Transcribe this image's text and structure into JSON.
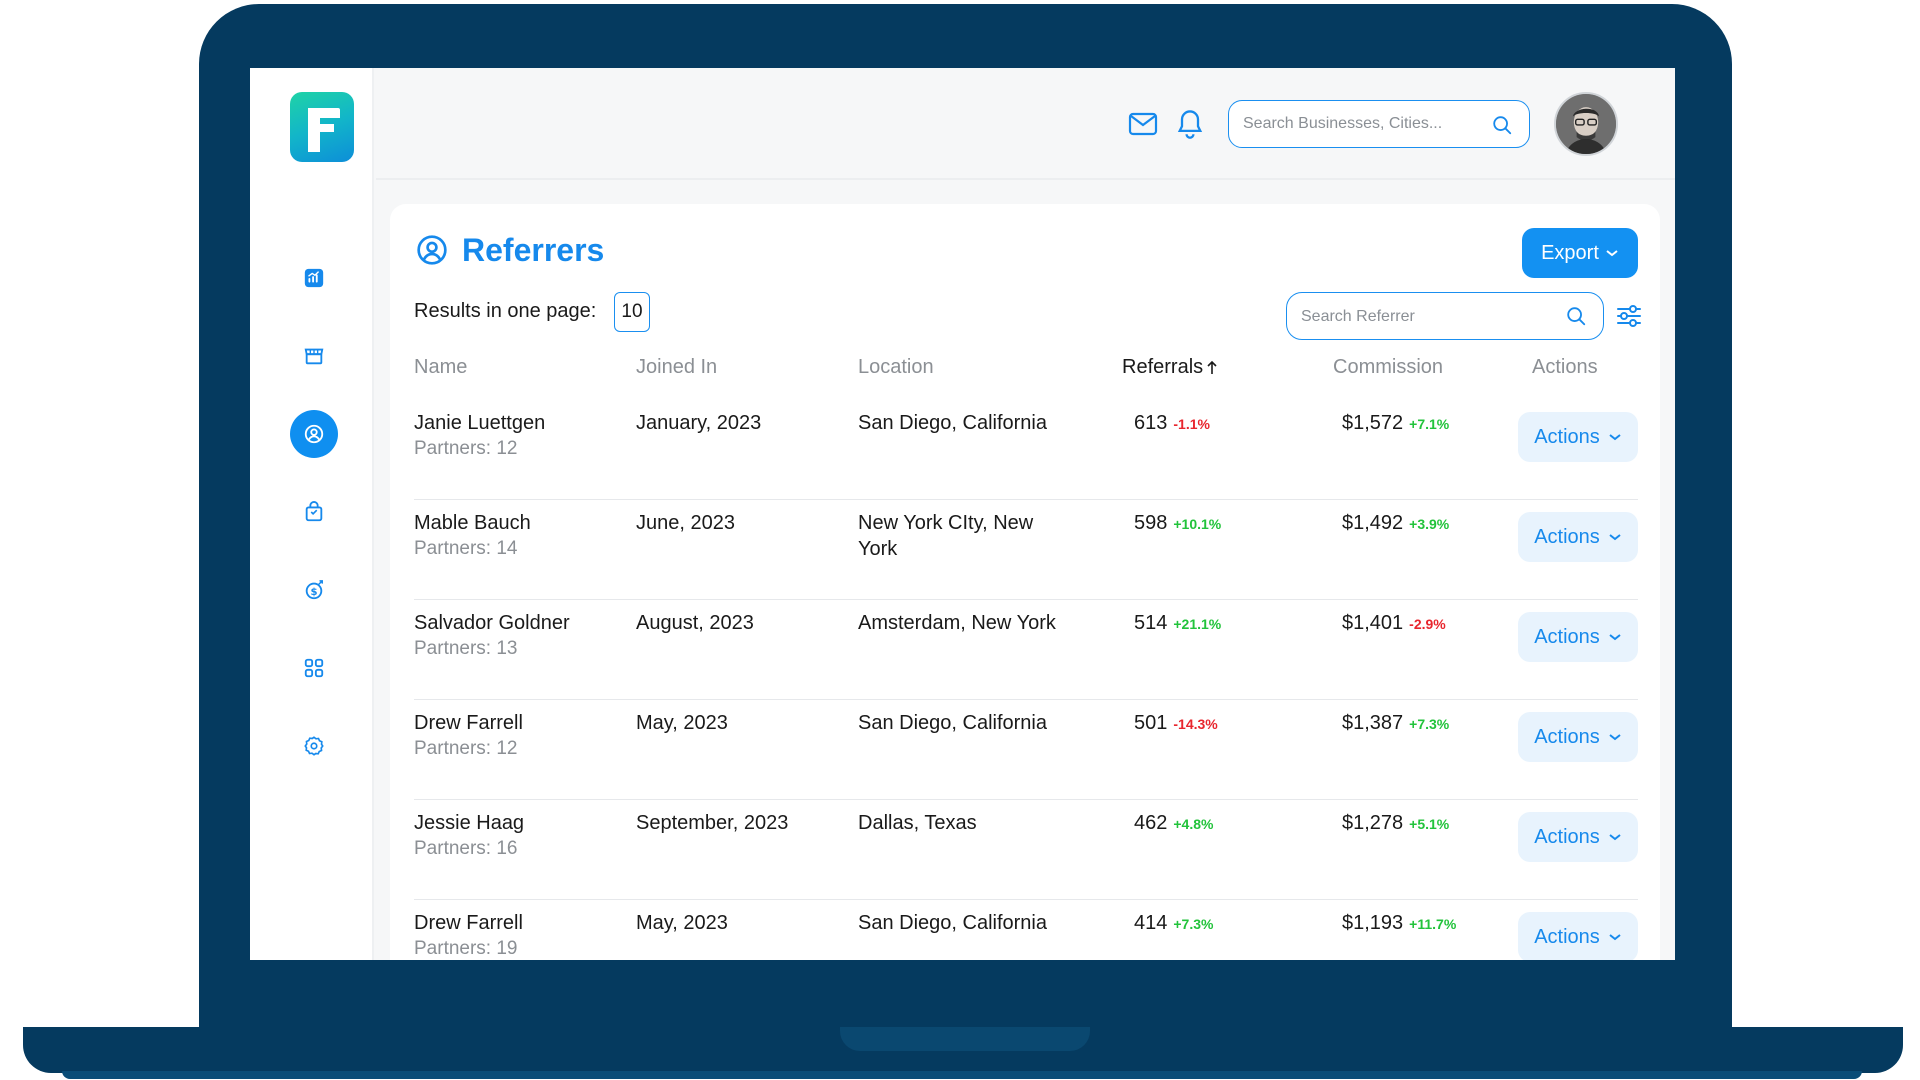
{
  "header": {
    "search_placeholder": "Search Businesses, Cities..."
  },
  "page": {
    "title": "Referrers",
    "export_label": "Export",
    "results_label": "Results in one page:",
    "results_value": "10",
    "search_placeholder": "Search Referrer"
  },
  "table": {
    "columns": {
      "name": "Name",
      "joined": "Joined In",
      "location": "Location",
      "referrals": "Referrals",
      "commission": "Commission",
      "actions": "Actions"
    },
    "rows": [
      {
        "name": "Janie Luettgen",
        "partners": "Partners: 12",
        "joined": "January, 2023",
        "location": "San Diego, California",
        "referrals": "613",
        "referrals_delta": "-1.1%",
        "referrals_dir": "down",
        "commission": "$1,572",
        "commission_delta": "+7.1%",
        "commission_dir": "up",
        "action": "Actions"
      },
      {
        "name": "Mable Bauch",
        "partners": "Partners: 14",
        "joined": "June, 2023",
        "location": "New York CIty, New York",
        "referrals": "598",
        "referrals_delta": "+10.1%",
        "referrals_dir": "up",
        "commission": "$1,492",
        "commission_delta": "+3.9%",
        "commission_dir": "up",
        "action": "Actions"
      },
      {
        "name": "Salvador Goldner",
        "partners": "Partners: 13",
        "joined": "August, 2023",
        "location": "Amsterdam, New York",
        "referrals": "514",
        "referrals_delta": "+21.1%",
        "referrals_dir": "up",
        "commission": "$1,401",
        "commission_delta": "-2.9%",
        "commission_dir": "down",
        "action": "Actions"
      },
      {
        "name": "Drew Farrell",
        "partners": "Partners: 12",
        "joined": "May, 2023",
        "location": "San Diego, California",
        "referrals": "501",
        "referrals_delta": "-14.3%",
        "referrals_dir": "down",
        "commission": "$1,387",
        "commission_delta": "+7.3%",
        "commission_dir": "up",
        "action": "Actions"
      },
      {
        "name": "Jessie Haag",
        "partners": "Partners: 16",
        "joined": "September, 2023",
        "location": "Dallas, Texas",
        "referrals": "462",
        "referrals_delta": "+4.8%",
        "referrals_dir": "up",
        "commission": "$1,278",
        "commission_delta": "+5.1%",
        "commission_dir": "up",
        "action": "Actions"
      },
      {
        "name": "Drew Farrell",
        "partners": "Partners: 19",
        "joined": "May, 2023",
        "location": "San Diego, California",
        "referrals": "414",
        "referrals_delta": "+7.3%",
        "referrals_dir": "up",
        "commission": "$1,193",
        "commission_delta": "+11.7%",
        "commission_dir": "up",
        "action": "Actions"
      }
    ]
  },
  "colors": {
    "brand": "#1689ec",
    "frame": "#053a5f",
    "positive": "#22c33b",
    "negative": "#e8262e"
  }
}
